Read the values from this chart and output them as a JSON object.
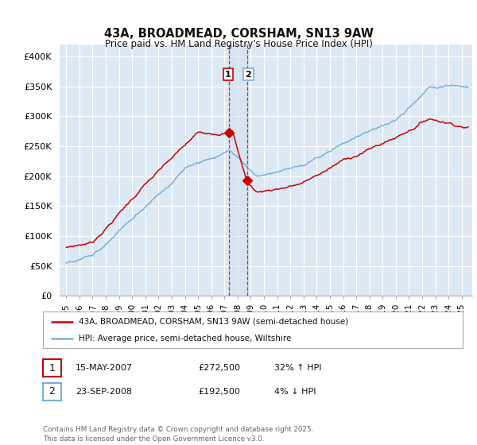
{
  "title": "43A, BROADMEAD, CORSHAM, SN13 9AW",
  "subtitle": "Price paid vs. HM Land Registry's House Price Index (HPI)",
  "ylim": [
    0,
    420000
  ],
  "yticks": [
    0,
    50000,
    100000,
    150000,
    200000,
    250000,
    300000,
    350000,
    400000
  ],
  "ytick_labels": [
    "£0",
    "£50K",
    "£100K",
    "£150K",
    "£200K",
    "£250K",
    "£300K",
    "£350K",
    "£400K"
  ],
  "background_color": "#ffffff",
  "plot_bg_color": "#dce9f5",
  "grid_color": "#ffffff",
  "line1_color": "#cc0000",
  "line2_color": "#7ab0d4",
  "vline_color": "#cc0000",
  "transaction1_year": 2007.37,
  "transaction1_price": 272500,
  "transaction2_year": 2008.72,
  "transaction2_price": 192500,
  "legend_line1": "43A, BROADMEAD, CORSHAM, SN13 9AW (semi-detached house)",
  "legend_line2": "HPI: Average price, semi-detached house, Wiltshire",
  "table_row1": [
    "1",
    "15-MAY-2007",
    "£272,500",
    "32% ↑ HPI"
  ],
  "table_row2": [
    "2",
    "23-SEP-2008",
    "£192,500",
    "4% ↓ HPI"
  ],
  "copyright_text": "Contains HM Land Registry data © Crown copyright and database right 2025.\nThis data is licensed under the Open Government Licence v3.0.",
  "xlim_start": 1994.5,
  "xlim_end": 2025.8,
  "xticks": [
    1995,
    1996,
    1997,
    1998,
    1999,
    2000,
    2001,
    2002,
    2003,
    2004,
    2005,
    2006,
    2007,
    2008,
    2009,
    2010,
    2011,
    2012,
    2013,
    2014,
    2015,
    2016,
    2017,
    2018,
    2019,
    2020,
    2021,
    2022,
    2023,
    2024,
    2025
  ]
}
